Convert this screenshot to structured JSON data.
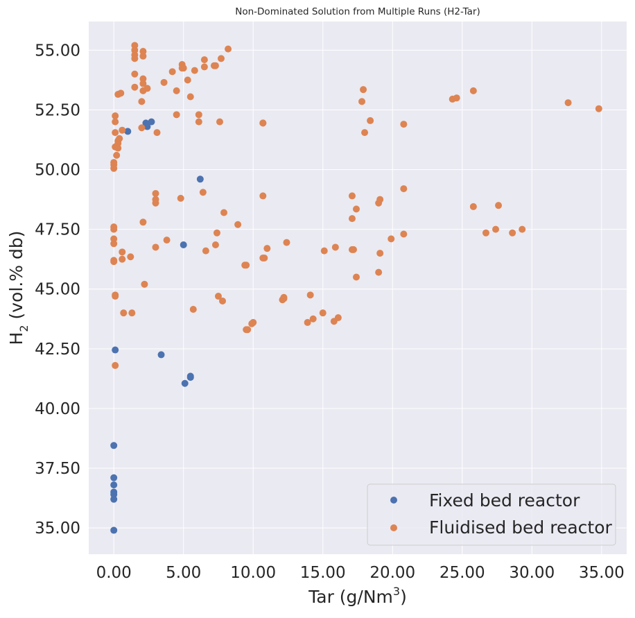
{
  "chart_data": {
    "type": "scatter",
    "title": "Non-Dominated Solution from Multiple Runs (H2-Tar)",
    "xlabel": {
      "main": "Tar (g/Nm",
      "sup": "3",
      "tail": ")"
    },
    "ylabel": {
      "main": "H",
      "sub": "2",
      "tail": " (vol.% db)"
    },
    "xlim": [
      -1.8,
      36.8
    ],
    "ylim": [
      33.9,
      56.2
    ],
    "xticks": [
      0,
      5,
      10,
      15,
      20,
      25,
      30,
      35
    ],
    "xtick_labels": [
      "0.00",
      "5.00",
      "10.00",
      "15.00",
      "20.00",
      "25.00",
      "30.00",
      "35.00"
    ],
    "yticks": [
      35,
      37.5,
      40,
      42.5,
      45,
      47.5,
      50,
      52.5,
      55
    ],
    "ytick_labels": [
      "35.00",
      "37.50",
      "40.00",
      "42.50",
      "45.00",
      "47.50",
      "50.00",
      "52.50",
      "55.00"
    ],
    "grid": true,
    "legend_position": "bottom-right",
    "background": "#eaeaf2",
    "series": [
      {
        "name": "Fixed bed reactor",
        "color": "#4c72b0",
        "points": [
          [
            1.0,
            51.6
          ],
          [
            2.3,
            51.95
          ],
          [
            2.4,
            51.8
          ],
          [
            2.7,
            52.0
          ],
          [
            6.2,
            49.6
          ],
          [
            5.0,
            46.85
          ],
          [
            0.1,
            42.45
          ],
          [
            3.4,
            42.25
          ],
          [
            5.1,
            41.05
          ],
          [
            5.5,
            41.3
          ],
          [
            5.5,
            41.35
          ],
          [
            0.0,
            38.45
          ],
          [
            0.0,
            37.1
          ],
          [
            0.0,
            36.8
          ],
          [
            0.0,
            36.5
          ],
          [
            0.0,
            36.4
          ],
          [
            0.0,
            36.2
          ],
          [
            0.0,
            34.9
          ]
        ]
      },
      {
        "name": "Fluidised bed reactor",
        "color": "#dd8452",
        "points": [
          [
            1.5,
            55.2
          ],
          [
            1.5,
            55.0
          ],
          [
            1.5,
            54.8
          ],
          [
            1.5,
            54.65
          ],
          [
            2.1,
            54.95
          ],
          [
            2.1,
            54.75
          ],
          [
            8.2,
            55.05
          ],
          [
            7.7,
            54.65
          ],
          [
            6.5,
            54.6
          ],
          [
            6.5,
            54.3
          ],
          [
            7.2,
            54.35
          ],
          [
            7.3,
            54.35
          ],
          [
            4.9,
            54.4
          ],
          [
            4.9,
            54.25
          ],
          [
            5.0,
            54.25
          ],
          [
            5.8,
            54.15
          ],
          [
            4.2,
            54.1
          ],
          [
            1.5,
            54.0
          ],
          [
            2.1,
            53.8
          ],
          [
            5.3,
            53.75
          ],
          [
            3.6,
            53.65
          ],
          [
            2.1,
            53.6
          ],
          [
            1.5,
            53.45
          ],
          [
            2.4,
            53.4
          ],
          [
            2.1,
            53.3
          ],
          [
            4.5,
            53.3
          ],
          [
            0.5,
            53.2
          ],
          [
            0.3,
            53.15
          ],
          [
            5.5,
            53.05
          ],
          [
            2.0,
            52.85
          ],
          [
            0.1,
            52.25
          ],
          [
            4.5,
            52.3
          ],
          [
            6.1,
            52.3
          ],
          [
            0.1,
            52.0
          ],
          [
            6.1,
            52.0
          ],
          [
            7.6,
            52.0
          ],
          [
            10.7,
            51.95
          ],
          [
            10.7,
            51.95
          ],
          [
            2.0,
            51.75
          ],
          [
            0.6,
            51.65
          ],
          [
            0.1,
            51.55
          ],
          [
            3.1,
            51.55
          ],
          [
            0.4,
            51.3
          ],
          [
            0.3,
            51.2
          ],
          [
            0.3,
            51.1
          ],
          [
            0.1,
            50.95
          ],
          [
            0.3,
            50.9
          ],
          [
            0.2,
            50.6
          ],
          [
            0.0,
            50.3
          ],
          [
            0.0,
            50.2
          ],
          [
            0.0,
            50.05
          ],
          [
            6.4,
            49.05
          ],
          [
            3.0,
            49.0
          ],
          [
            3.0,
            48.75
          ],
          [
            3.0,
            48.6
          ],
          [
            4.8,
            48.8
          ],
          [
            10.7,
            48.9
          ],
          [
            7.9,
            48.2
          ],
          [
            2.1,
            47.8
          ],
          [
            8.9,
            47.7
          ],
          [
            0.0,
            47.6
          ],
          [
            0.0,
            47.5
          ],
          [
            7.4,
            47.35
          ],
          [
            0.0,
            47.1
          ],
          [
            3.8,
            47.05
          ],
          [
            12.4,
            46.95
          ],
          [
            0.0,
            46.9
          ],
          [
            7.3,
            46.85
          ],
          [
            3.0,
            46.75
          ],
          [
            11.0,
            46.7
          ],
          [
            6.6,
            46.6
          ],
          [
            0.6,
            46.55
          ],
          [
            1.2,
            46.35
          ],
          [
            10.8,
            46.3
          ],
          [
            10.7,
            46.3
          ],
          [
            0.6,
            46.25
          ],
          [
            0.0,
            46.2
          ],
          [
            0.0,
            46.15
          ],
          [
            9.4,
            46.0
          ],
          [
            9.5,
            46.0
          ],
          [
            2.2,
            45.2
          ],
          [
            0.1,
            44.75
          ],
          [
            0.1,
            44.7
          ],
          [
            7.5,
            44.7
          ],
          [
            7.8,
            44.5
          ],
          [
            0.7,
            44.0
          ],
          [
            1.3,
            44.0
          ],
          [
            5.7,
            44.15
          ],
          [
            9.5,
            43.3
          ],
          [
            9.6,
            43.3
          ],
          [
            9.9,
            43.55
          ],
          [
            10.0,
            43.6
          ],
          [
            12.1,
            44.55
          ],
          [
            12.2,
            44.6
          ],
          [
            12.2,
            44.65
          ],
          [
            0.1,
            41.8
          ],
          [
            15.1,
            46.6
          ],
          [
            15.9,
            46.75
          ],
          [
            17.1,
            48.9
          ],
          [
            17.1,
            47.95
          ],
          [
            17.4,
            48.35
          ],
          [
            17.1,
            46.65
          ],
          [
            17.2,
            46.65
          ],
          [
            17.4,
            45.5
          ],
          [
            14.1,
            44.75
          ],
          [
            13.9,
            43.6
          ],
          [
            14.3,
            43.75
          ],
          [
            15.0,
            44.0
          ],
          [
            15.8,
            43.65
          ],
          [
            16.1,
            43.8
          ],
          [
            17.9,
            53.35
          ],
          [
            17.8,
            52.85
          ],
          [
            18.4,
            52.05
          ],
          [
            18.0,
            51.55
          ],
          [
            19.0,
            48.6
          ],
          [
            19.1,
            48.75
          ],
          [
            19.1,
            46.5
          ],
          [
            19.0,
            45.7
          ],
          [
            19.9,
            47.1
          ],
          [
            20.8,
            51.9
          ],
          [
            20.8,
            49.2
          ],
          [
            20.8,
            47.3
          ],
          [
            24.3,
            52.95
          ],
          [
            24.6,
            53.0
          ],
          [
            25.8,
            53.3
          ],
          [
            25.8,
            48.45
          ],
          [
            27.6,
            48.5
          ],
          [
            26.7,
            47.35
          ],
          [
            27.4,
            47.5
          ],
          [
            28.6,
            47.35
          ],
          [
            29.3,
            47.5
          ],
          [
            32.6,
            52.8
          ],
          [
            34.8,
            52.55
          ]
        ]
      }
    ]
  }
}
